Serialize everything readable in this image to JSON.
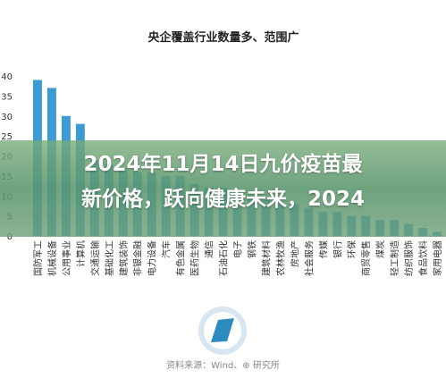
{
  "chart_data": {
    "type": "bar",
    "title": "央企覆盖行业数量多、范围广",
    "ylim": [
      0,
      40
    ],
    "yticks": [
      0,
      5,
      10,
      15,
      20,
      25,
      30,
      35,
      40
    ],
    "grid": false,
    "color": "#3a9bd5",
    "categories": [
      "国防军工",
      "机械设备",
      "公用事业",
      "计算机",
      "交通运输",
      "基础化工",
      "建筑装饰",
      "非银金融",
      "电力设备",
      "汽车",
      "有色金属",
      "医药生物",
      "通信",
      "石油石化",
      "电子",
      "钢铁",
      "建筑材料",
      "农林牧渔",
      "房地产",
      "社会服务",
      "传媒",
      "银行",
      "环保",
      "商贸零售",
      "煤炭",
      "轻工制造",
      "纺织服饰",
      "食品饮料",
      "家用电器"
    ],
    "values": [
      39,
      37,
      30,
      28,
      19,
      18,
      17,
      16,
      16,
      15,
      15,
      13,
      12,
      12,
      11,
      10,
      9,
      8,
      8,
      7,
      6,
      6,
      5,
      5,
      4,
      4,
      3,
      2,
      1
    ]
  },
  "overlay": {
    "line1": "2024年11月14日九价疫苗最",
    "line2": "新价格，跃向健康未来，2024"
  },
  "footer": {
    "source": "资料来源：Wind、⊕ 研究所"
  },
  "colors": {
    "overlay": "#6aa27a",
    "logo": "#2e8bc0"
  }
}
